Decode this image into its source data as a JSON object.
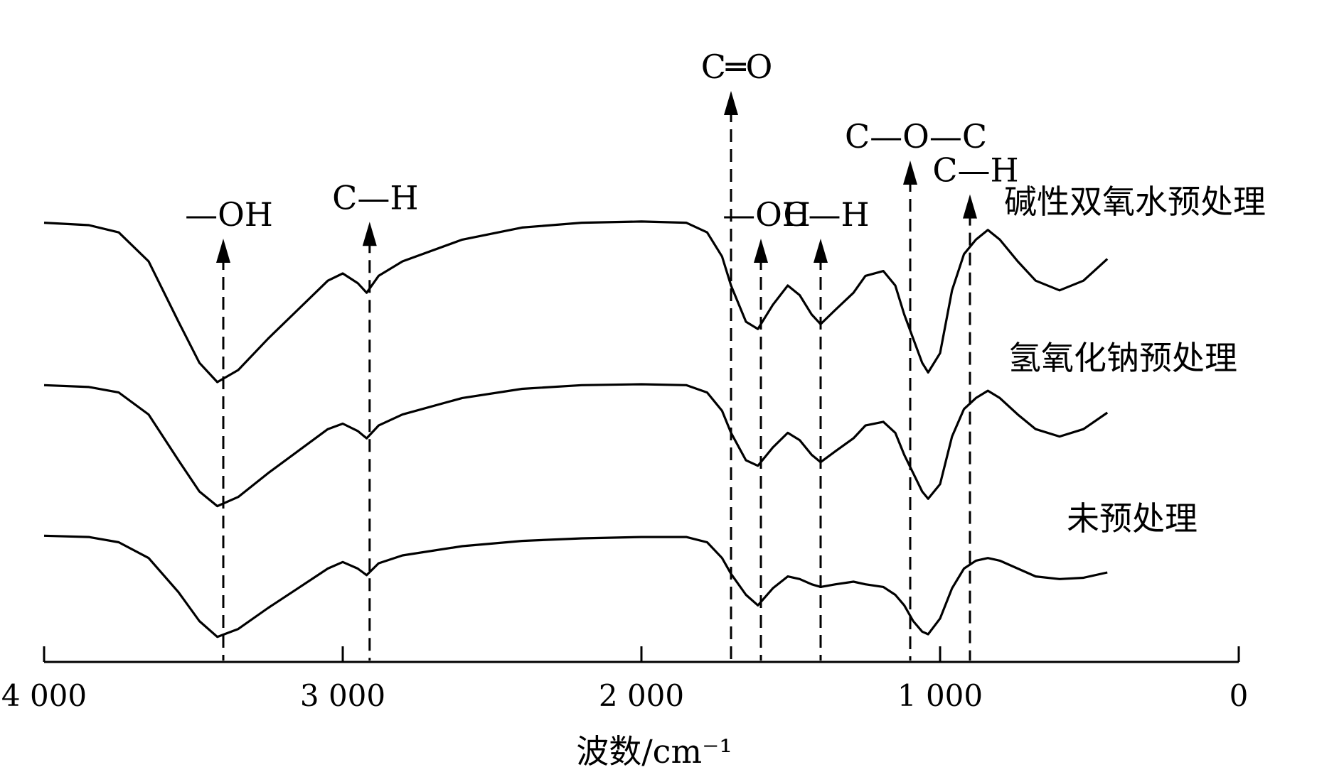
{
  "chart_data": {
    "type": "line",
    "title": "",
    "xlabel": "波数/cm⁻¹",
    "ylabel": "",
    "xlim": [
      4000,
      0
    ],
    "x_reversed": true,
    "xticks": [
      {
        "value": 4000,
        "label": "4 000"
      },
      {
        "value": 3000,
        "label": "3 000"
      },
      {
        "value": 2000,
        "label": "2 000"
      },
      {
        "value": 1000,
        "label": "1 000"
      },
      {
        "value": 0,
        "label": "0"
      }
    ],
    "y_axis_shown": false,
    "grid": false,
    "series": [
      {
        "name": "碱性双氧水预处理",
        "points": [
          [
            4000,
            0.96
          ],
          [
            3850,
            0.95
          ],
          [
            3750,
            0.92
          ],
          [
            3650,
            0.8
          ],
          [
            3550,
            0.55
          ],
          [
            3480,
            0.38
          ],
          [
            3420,
            0.3
          ],
          [
            3350,
            0.35
          ],
          [
            3250,
            0.48
          ],
          [
            3150,
            0.6
          ],
          [
            3050,
            0.72
          ],
          [
            3000,
            0.75
          ],
          [
            2950,
            0.71
          ],
          [
            2920,
            0.67
          ],
          [
            2880,
            0.74
          ],
          [
            2800,
            0.8
          ],
          [
            2600,
            0.89
          ],
          [
            2400,
            0.94
          ],
          [
            2200,
            0.96
          ],
          [
            2000,
            0.965
          ],
          [
            1850,
            0.96
          ],
          [
            1780,
            0.92
          ],
          [
            1730,
            0.82
          ],
          [
            1700,
            0.7
          ],
          [
            1650,
            0.55
          ],
          [
            1610,
            0.52
          ],
          [
            1560,
            0.62
          ],
          [
            1510,
            0.7
          ],
          [
            1470,
            0.66
          ],
          [
            1430,
            0.58
          ],
          [
            1400,
            0.54
          ],
          [
            1350,
            0.6
          ],
          [
            1290,
            0.67
          ],
          [
            1250,
            0.74
          ],
          [
            1190,
            0.76
          ],
          [
            1150,
            0.7
          ],
          [
            1120,
            0.58
          ],
          [
            1090,
            0.48
          ],
          [
            1060,
            0.38
          ],
          [
            1040,
            0.34
          ],
          [
            1000,
            0.42
          ],
          [
            960,
            0.68
          ],
          [
            920,
            0.83
          ],
          [
            880,
            0.89
          ],
          [
            840,
            0.93
          ],
          [
            800,
            0.89
          ],
          [
            740,
            0.8
          ],
          [
            680,
            0.72
          ],
          [
            600,
            0.68
          ],
          [
            520,
            0.72
          ],
          [
            440,
            0.81
          ]
        ],
        "peaks": [
          {
            "x": 3400,
            "label": "—OH"
          },
          {
            "x": 2910,
            "label": "C—H"
          },
          {
            "x": 1700,
            "label": "C═O"
          },
          {
            "x": 1600,
            "label": "—OH"
          },
          {
            "x": 1400,
            "label": "C—H"
          },
          {
            "x": 1100,
            "label": "C—O—C"
          },
          {
            "x": 900,
            "label": "C—H"
          }
        ]
      },
      {
        "name": "氢氧化钠预处理",
        "points": [
          [
            4000,
            0.96
          ],
          [
            3850,
            0.95
          ],
          [
            3750,
            0.92
          ],
          [
            3650,
            0.8
          ],
          [
            3550,
            0.55
          ],
          [
            3480,
            0.38
          ],
          [
            3420,
            0.3
          ],
          [
            3350,
            0.35
          ],
          [
            3250,
            0.48
          ],
          [
            3150,
            0.6
          ],
          [
            3050,
            0.72
          ],
          [
            3000,
            0.75
          ],
          [
            2950,
            0.71
          ],
          [
            2920,
            0.67
          ],
          [
            2880,
            0.74
          ],
          [
            2800,
            0.8
          ],
          [
            2600,
            0.89
          ],
          [
            2400,
            0.94
          ],
          [
            2200,
            0.96
          ],
          [
            2000,
            0.965
          ],
          [
            1850,
            0.96
          ],
          [
            1780,
            0.92
          ],
          [
            1730,
            0.82
          ],
          [
            1700,
            0.7
          ],
          [
            1650,
            0.55
          ],
          [
            1610,
            0.52
          ],
          [
            1560,
            0.62
          ],
          [
            1510,
            0.7
          ],
          [
            1470,
            0.66
          ],
          [
            1430,
            0.58
          ],
          [
            1400,
            0.54
          ],
          [
            1350,
            0.6
          ],
          [
            1290,
            0.67
          ],
          [
            1250,
            0.74
          ],
          [
            1190,
            0.76
          ],
          [
            1150,
            0.7
          ],
          [
            1120,
            0.58
          ],
          [
            1090,
            0.48
          ],
          [
            1060,
            0.38
          ],
          [
            1040,
            0.34
          ],
          [
            1000,
            0.42
          ],
          [
            960,
            0.68
          ],
          [
            920,
            0.83
          ],
          [
            880,
            0.89
          ],
          [
            840,
            0.93
          ],
          [
            800,
            0.89
          ],
          [
            740,
            0.8
          ],
          [
            680,
            0.72
          ],
          [
            600,
            0.68
          ],
          [
            520,
            0.72
          ],
          [
            440,
            0.81
          ]
        ]
      },
      {
        "name": "未预处理",
        "points": [
          [
            4000,
            0.95
          ],
          [
            3850,
            0.94
          ],
          [
            3750,
            0.9
          ],
          [
            3650,
            0.78
          ],
          [
            3550,
            0.52
          ],
          [
            3480,
            0.3
          ],
          [
            3420,
            0.18
          ],
          [
            3350,
            0.24
          ],
          [
            3250,
            0.4
          ],
          [
            3150,
            0.55
          ],
          [
            3050,
            0.7
          ],
          [
            3000,
            0.75
          ],
          [
            2950,
            0.7
          ],
          [
            2920,
            0.65
          ],
          [
            2880,
            0.74
          ],
          [
            2800,
            0.8
          ],
          [
            2600,
            0.87
          ],
          [
            2400,
            0.91
          ],
          [
            2200,
            0.93
          ],
          [
            2000,
            0.94
          ],
          [
            1850,
            0.94
          ],
          [
            1780,
            0.9
          ],
          [
            1730,
            0.78
          ],
          [
            1700,
            0.66
          ],
          [
            1650,
            0.5
          ],
          [
            1610,
            0.42
          ],
          [
            1560,
            0.55
          ],
          [
            1510,
            0.64
          ],
          [
            1470,
            0.62
          ],
          [
            1430,
            0.58
          ],
          [
            1400,
            0.56
          ],
          [
            1350,
            0.58
          ],
          [
            1290,
            0.6
          ],
          [
            1250,
            0.58
          ],
          [
            1190,
            0.56
          ],
          [
            1150,
            0.5
          ],
          [
            1120,
            0.42
          ],
          [
            1090,
            0.3
          ],
          [
            1060,
            0.22
          ],
          [
            1040,
            0.2
          ],
          [
            1000,
            0.32
          ],
          [
            960,
            0.55
          ],
          [
            920,
            0.7
          ],
          [
            880,
            0.76
          ],
          [
            840,
            0.78
          ],
          [
            800,
            0.76
          ],
          [
            740,
            0.7
          ],
          [
            680,
            0.64
          ],
          [
            600,
            0.62
          ],
          [
            520,
            0.63
          ],
          [
            440,
            0.67
          ]
        ]
      }
    ]
  }
}
